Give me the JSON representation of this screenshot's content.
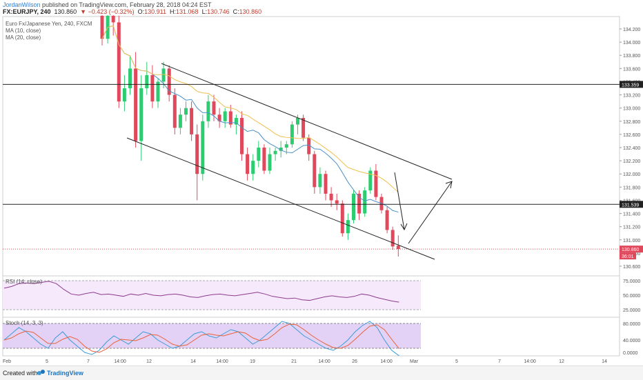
{
  "header": {
    "author": "JordanWilson",
    "published": " published on TradingView.com, February 28, 2018 04:24 EST",
    "symbol": "FX:EURJPY, 240",
    "price": "130.860",
    "change": "▼ −0.423 (−0.32%)",
    "o_label": "O:",
    "o_value": "130.911",
    "h_label": "H:",
    "h_value": "131.068",
    "l_label": "L:",
    "l_value": "130.746",
    "c_label": "C:",
    "c_value": "130.860"
  },
  "legend": {
    "title": "Euro Fx/Japanese Yen, 240, FXCM",
    "ma10": "MA (10, close)",
    "ma20": "MA (20, close)",
    "rsi": "RSI (14, close)",
    "stoch": "Stoch (14, 3, 3)"
  },
  "price_axis": {
    "ticks": [
      "134.200",
      "134.000",
      "133.800",
      "133.600",
      "133.400",
      "133.200",
      "133.000",
      "132.800",
      "132.600",
      "132.400",
      "132.200",
      "132.000",
      "131.800",
      "131.600",
      "131.400",
      "131.200",
      "131.000",
      "130.800",
      "130.600"
    ],
    "hline_upper": "133.359",
    "hline_lower": "131.539",
    "current": "130.860",
    "countdown": "36:01"
  },
  "rsi_axis": {
    "ticks": [
      "75.0000",
      "50.0000",
      "25.0000"
    ]
  },
  "stoch_axis": {
    "ticks": [
      "80.0000",
      "40.0000",
      "0.0000"
    ]
  },
  "time_axis": {
    "labels": [
      "Feb",
      "5",
      "7",
      "14:00",
      "12",
      "14",
      "14:00",
      "19",
      "21",
      "14:00",
      "26",
      "14:00",
      "Mar",
      "5",
      "7",
      "14:00",
      "12",
      "14"
    ]
  },
  "footer": {
    "created": "Created with",
    "brand": "TradingView"
  },
  "colors": {
    "bull": "#2ecc71",
    "bear": "#e0485c",
    "ma10": "#4a90c8",
    "ma20": "#f0c050",
    "rsi_bg": "#f5e9fb",
    "stoch_bg": "#e3d2f5",
    "rsi_line": "#8e3a8e",
    "stoch_k": "#3a9ad9",
    "stoch_d": "#e8613c"
  },
  "chart_data": {
    "type": "candlestick",
    "title": "Euro Fx/Japanese Yen, 240, FXCM",
    "ylim": [
      130.5,
      134.35
    ],
    "candles": [
      [
        134.4,
        134.45,
        133.95,
        134.05
      ],
      [
        134.05,
        134.5,
        133.98,
        134.4
      ],
      [
        134.4,
        134.5,
        134.1,
        134.3
      ],
      [
        134.3,
        134.4,
        133.0,
        133.1
      ],
      [
        133.1,
        133.5,
        132.95,
        133.3
      ],
      [
        133.3,
        133.8,
        133.2,
        133.6
      ],
      [
        133.6,
        133.85,
        132.4,
        132.5
      ],
      [
        132.5,
        133.5,
        132.2,
        133.3
      ],
      [
        133.3,
        133.7,
        133.2,
        133.5
      ],
      [
        133.5,
        133.65,
        133.0,
        133.1
      ],
      [
        133.1,
        133.45,
        133.0,
        133.4
      ],
      [
        133.4,
        133.7,
        133.3,
        133.6
      ],
      [
        133.6,
        133.65,
        133.1,
        133.2
      ],
      [
        133.2,
        133.3,
        132.6,
        132.7
      ],
      [
        132.7,
        133.0,
        132.6,
        132.9
      ],
      [
        132.9,
        133.1,
        132.8,
        133.0
      ],
      [
        133.0,
        133.1,
        132.5,
        132.6
      ],
      [
        132.6,
        132.75,
        131.6,
        132.0
      ],
      [
        132.0,
        132.9,
        131.9,
        132.8
      ],
      [
        132.8,
        133.2,
        132.7,
        133.1
      ],
      [
        133.1,
        133.2,
        132.8,
        132.9
      ],
      [
        132.9,
        133.0,
        132.7,
        132.8
      ],
      [
        132.8,
        133.0,
        132.7,
        132.95
      ],
      [
        132.95,
        133.05,
        132.7,
        132.75
      ],
      [
        132.75,
        132.9,
        132.6,
        132.85
      ],
      [
        132.85,
        132.95,
        132.2,
        132.3
      ],
      [
        132.3,
        132.4,
        131.9,
        132.0
      ],
      [
        132.0,
        132.3,
        131.9,
        132.2
      ],
      [
        132.2,
        132.5,
        132.1,
        132.4
      ],
      [
        132.4,
        132.45,
        132.0,
        132.05
      ],
      [
        132.05,
        132.4,
        132.0,
        132.3
      ],
      [
        132.3,
        132.4,
        132.2,
        132.35
      ],
      [
        132.35,
        132.5,
        132.25,
        132.4
      ],
      [
        132.4,
        132.5,
        132.3,
        132.45
      ],
      [
        132.45,
        132.8,
        132.4,
        132.75
      ],
      [
        132.75,
        132.9,
        132.6,
        132.85
      ],
      [
        132.85,
        132.9,
        132.5,
        132.55
      ],
      [
        132.55,
        132.6,
        132.2,
        132.3
      ],
      [
        132.3,
        132.35,
        131.7,
        131.8
      ],
      [
        131.8,
        132.1,
        131.7,
        132.0
      ],
      [
        132.0,
        132.05,
        131.6,
        131.7
      ],
      [
        131.7,
        131.8,
        131.5,
        131.6
      ],
      [
        131.6,
        131.7,
        131.45,
        131.55
      ],
      [
        131.55,
        131.6,
        131.05,
        131.1
      ],
      [
        131.1,
        131.4,
        131.0,
        131.3
      ],
      [
        131.3,
        131.75,
        131.25,
        131.7
      ],
      [
        131.7,
        131.75,
        131.3,
        131.4
      ],
      [
        131.4,
        131.8,
        131.35,
        131.75
      ],
      [
        131.75,
        132.1,
        131.7,
        132.05
      ],
      [
        132.05,
        132.15,
        131.6,
        131.65
      ],
      [
        131.65,
        131.7,
        131.4,
        131.45
      ],
      [
        131.45,
        131.5,
        131.1,
        131.15
      ],
      [
        131.15,
        131.2,
        130.85,
        130.9
      ],
      [
        130.911,
        131.068,
        130.746,
        130.86
      ]
    ],
    "annotations": [
      "descending channel",
      "down arrow",
      "up arrow"
    ]
  }
}
